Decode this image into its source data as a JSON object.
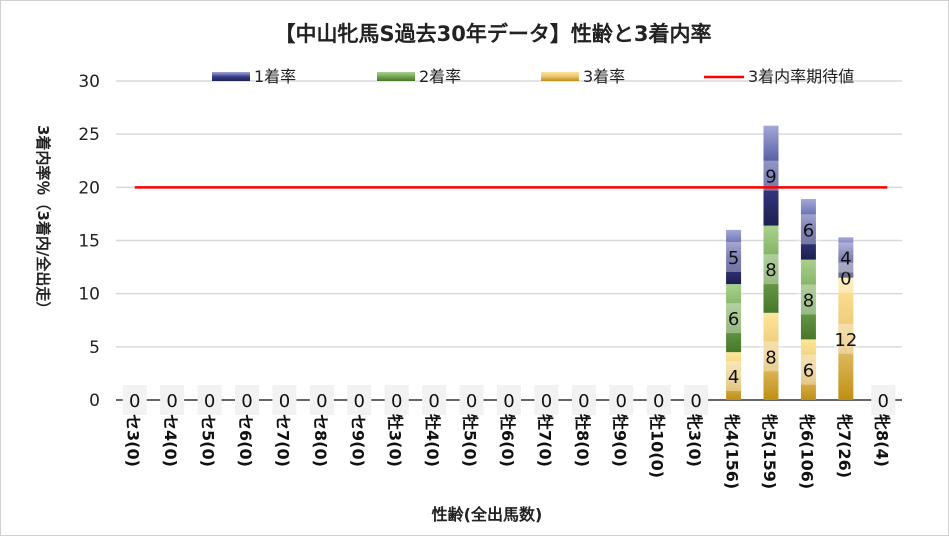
{
  "chart_data": {
    "type": "bar",
    "stacked": true,
    "title": "【中山牝馬S過去30年データ】性齢と3着内率",
    "xlabel": "性齢(全出馬数)",
    "ylabel": "3着内率％（3着内/全出走）",
    "ylim": [
      0,
      30
    ],
    "yticks": [
      0,
      5,
      10,
      15,
      20,
      25,
      30
    ],
    "grid": true,
    "legend_position": "top",
    "categories": [
      "セ3(0)",
      "セ4(0)",
      "セ5(0)",
      "セ6(0)",
      "セ7(0)",
      "セ8(0)",
      "セ9(0)",
      "牡3(0)",
      "牡4(0)",
      "牡5(0)",
      "牡6(0)",
      "牡7(0)",
      "牡8(0)",
      "牡9(0)",
      "牡10(0)",
      "牝3(0)",
      "牝4(156)",
      "牝5(159)",
      "牝6(106)",
      "牝7(26)",
      "牝8(4)"
    ],
    "series": [
      {
        "name": "3着率",
        "color": "#c8961e",
        "values": [
          0,
          0,
          0,
          0,
          0,
          0,
          0,
          0,
          0,
          0,
          0,
          0,
          0,
          0,
          0,
          0,
          4.5,
          8.2,
          5.7,
          11.5,
          0
        ],
        "labels": [
          null,
          null,
          null,
          null,
          null,
          null,
          null,
          null,
          null,
          null,
          null,
          null,
          null,
          null,
          null,
          null,
          "4",
          "8",
          "6",
          "12",
          null
        ]
      },
      {
        "name": "2着率",
        "color": "#4e7f2e",
        "values": [
          0,
          0,
          0,
          0,
          0,
          0,
          0,
          0,
          0,
          0,
          0,
          0,
          0,
          0,
          0,
          0,
          6.4,
          8.2,
          7.5,
          0,
          0
        ],
        "labels": [
          null,
          null,
          null,
          null,
          null,
          null,
          null,
          null,
          null,
          null,
          null,
          null,
          null,
          null,
          null,
          null,
          "6",
          "8",
          "8",
          "0",
          null
        ]
      },
      {
        "name": "1着率",
        "color": "#2e3472",
        "values": [
          0,
          0,
          0,
          0,
          0,
          0,
          0,
          0,
          0,
          0,
          0,
          0,
          0,
          0,
          0,
          0,
          5.1,
          9.4,
          5.7,
          3.8,
          0
        ],
        "labels": [
          null,
          null,
          null,
          null,
          null,
          null,
          null,
          null,
          null,
          null,
          null,
          null,
          null,
          null,
          null,
          null,
          "5",
          "9",
          "6",
          "4",
          null
        ]
      }
    ],
    "zero_labels": [
      "0",
      "0",
      "0",
      "0",
      "0",
      "0",
      "0",
      "0",
      "0",
      "0",
      "0",
      "0",
      "0",
      "0",
      "0",
      "0",
      null,
      null,
      null,
      null,
      "0"
    ],
    "reference_line": {
      "name": "3着内率期待値",
      "value": 20,
      "color": "#ff0000"
    }
  }
}
